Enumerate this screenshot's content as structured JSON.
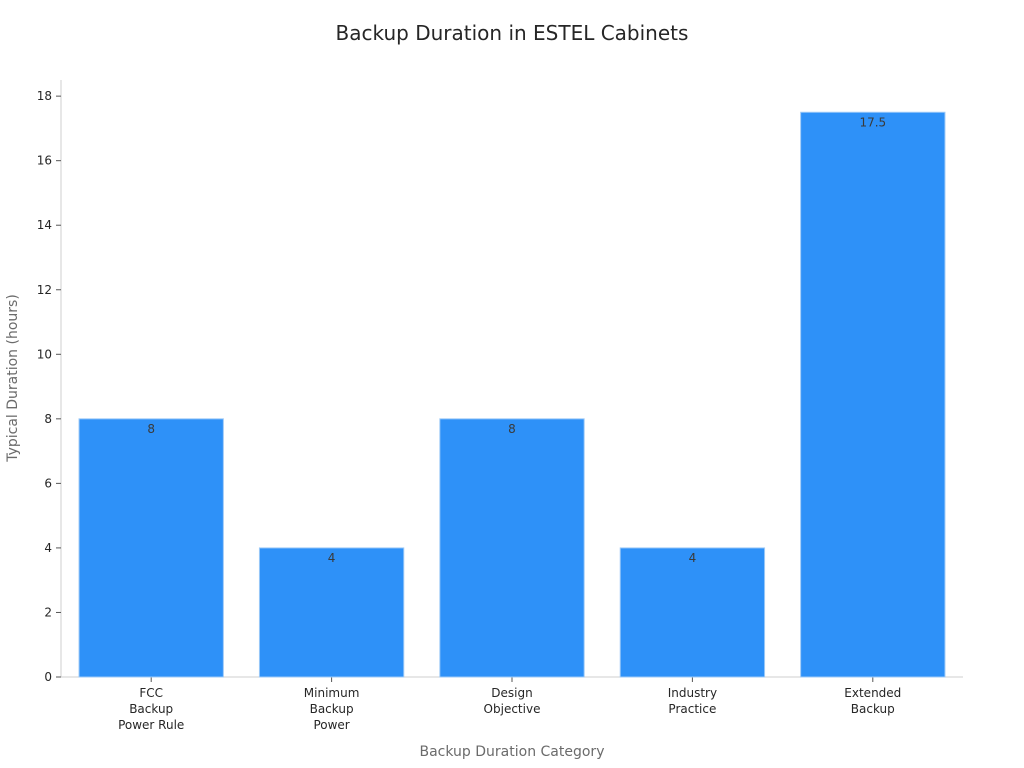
{
  "chart_data": {
    "type": "bar",
    "title": "Backup Duration in ESTEL Cabinets",
    "xlabel": "Backup Duration Category",
    "ylabel": "Typical Duration (hours)",
    "categories": [
      [
        "FCC",
        "Backup",
        "Power Rule"
      ],
      [
        "Minimum",
        "Backup",
        "Power"
      ],
      [
        "Design",
        "Objective"
      ],
      [
        "Industry",
        "Practice"
      ],
      [
        "Extended",
        "Backup"
      ]
    ],
    "values": [
      8,
      4,
      8,
      4,
      17.5
    ],
    "data_labels": [
      "8",
      "4",
      "8",
      "4",
      "17.5"
    ],
    "ylim": [
      0,
      18.5
    ],
    "yticks": [
      0,
      2,
      4,
      6,
      8,
      10,
      12,
      14,
      16,
      18
    ],
    "bar_color": "#2E91F8",
    "bar_edge_color": "#9cc9f7",
    "grid": false,
    "legend": "none"
  }
}
